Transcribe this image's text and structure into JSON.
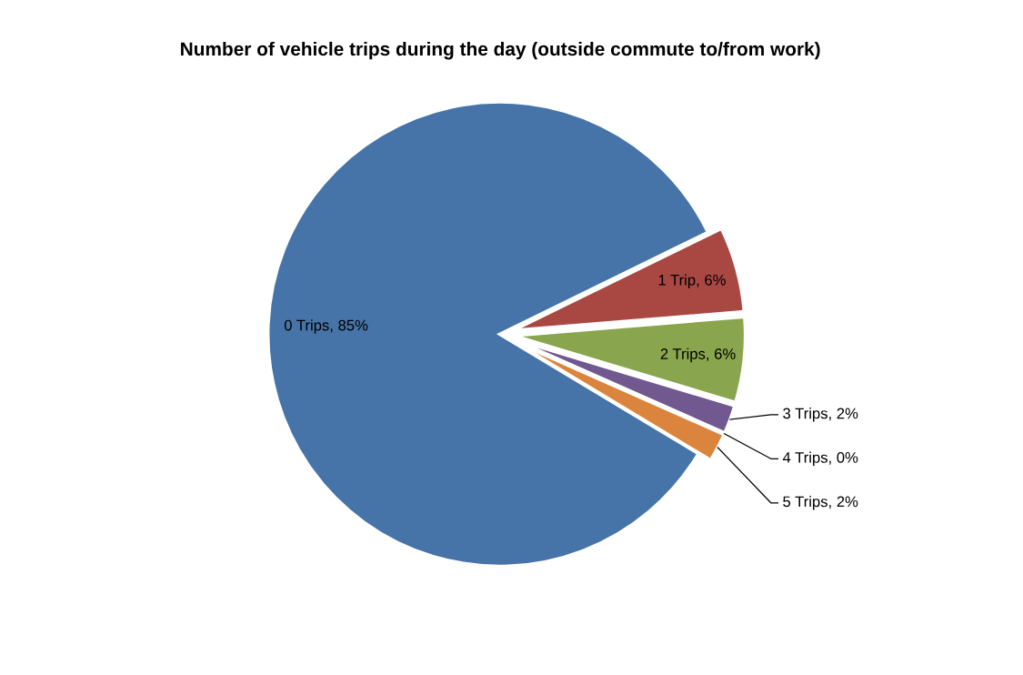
{
  "chart_data": {
    "type": "pie",
    "title": "Number of vehicle trips during the day (outside commute to/from work)",
    "categories": [
      "0 Trips, 85%",
      "1 Trip, 6%",
      "2 Trips, 6%",
      "3 Trips, 2%",
      "4 Trips, 0%",
      "5 Trips, 2%"
    ],
    "values": [
      85,
      6,
      6,
      2,
      0,
      2
    ],
    "colors": [
      "#4674a8",
      "#a94843",
      "#89a54e",
      "#71588f",
      "#4198af",
      "#db843d"
    ]
  }
}
